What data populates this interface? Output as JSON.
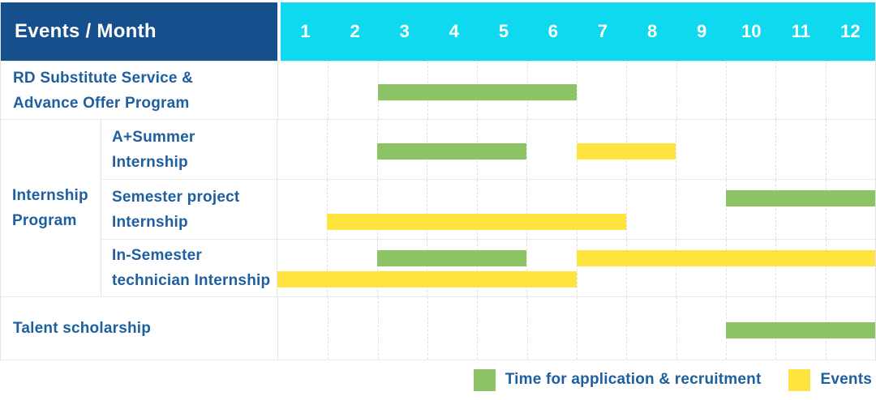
{
  "header": {
    "title": "Events / Month",
    "months": [
      "1",
      "2",
      "3",
      "4",
      "5",
      "6",
      "7",
      "8",
      "9",
      "10",
      "11",
      "12"
    ]
  },
  "colors": {
    "header_bg": "#15508c",
    "months_bg": "#0fd9ef",
    "application_green": "#8bc365",
    "events_yellow": "#ffe43f",
    "label_blue": "#1e5fa0",
    "grid_line": "#e4e4e4"
  },
  "legend": {
    "items": [
      {
        "icon": "green-swatch",
        "label": "Time for application & recruitment",
        "color": "#8bc365"
      },
      {
        "icon": "yellow-swatch",
        "label": "Events",
        "color": "#ffe43f"
      }
    ]
  },
  "chart_data": {
    "type": "bar",
    "variant": "gantt",
    "title": "Events / Month",
    "x_unit": "month",
    "x_ticks": [
      1,
      2,
      3,
      4,
      5,
      6,
      7,
      8,
      9,
      10,
      11,
      12
    ],
    "x_range": [
      1,
      12
    ],
    "grid": true,
    "legend_position": "bottom-right",
    "bar_kinds": {
      "application": "Time for application & recruitment",
      "events": "Events"
    },
    "group_label_lines": [
      "Internship",
      "Program"
    ],
    "rows": [
      {
        "group": "",
        "label": "RD Substitute Service & Advance Offer Program",
        "label_lines": [
          "RD Substitute Service &",
          "Advance Offer Program"
        ],
        "bars": [
          {
            "kind": "application",
            "start_month": 3,
            "end_month": 6,
            "track": "center"
          }
        ]
      },
      {
        "group": "Internship Program",
        "label": "A+Summer Internship",
        "label_lines": [
          "A+Summer",
          "Internship"
        ],
        "bars": [
          {
            "kind": "application",
            "start_month": 3,
            "end_month": 5,
            "track": "center"
          },
          {
            "kind": "events",
            "start_month": 7,
            "end_month": 8,
            "track": "center"
          }
        ]
      },
      {
        "group": "Internship Program",
        "label": "Semester project Internship",
        "label_lines": [
          "Semester project",
          "Internship"
        ],
        "bars": [
          {
            "kind": "application",
            "start_month": 10,
            "end_month": 12,
            "track": "top"
          },
          {
            "kind": "events",
            "start_month": 2,
            "end_month": 7,
            "track": "bottom"
          }
        ]
      },
      {
        "group": "Internship Program",
        "label": "In-Semester technician Internship",
        "label_lines": [
          "In-Semester",
          "technician Internship"
        ],
        "bars": [
          {
            "kind": "application",
            "start_month": 3,
            "end_month": 5,
            "track": "top"
          },
          {
            "kind": "events",
            "start_month": 7,
            "end_month": 12,
            "track": "top"
          },
          {
            "kind": "events",
            "start_month": 1,
            "end_month": 6,
            "track": "bottom"
          }
        ]
      },
      {
        "group": "",
        "label": "Talent scholarship",
        "label_lines": [
          "Talent scholarship"
        ],
        "bars": [
          {
            "kind": "application",
            "start_month": 10,
            "end_month": 12,
            "track": "center"
          }
        ]
      }
    ]
  }
}
